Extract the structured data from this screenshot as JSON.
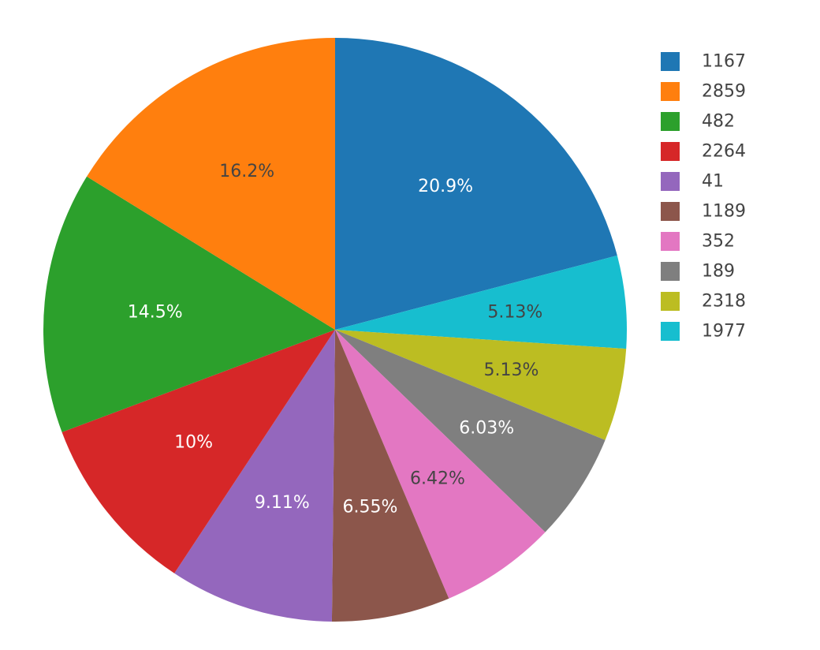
{
  "chart_data": {
    "type": "pie",
    "direction": "clockwise",
    "start": "12 o'clock",
    "slices": [
      {
        "label": "1167",
        "percent": 20.9,
        "text": "20.9%",
        "color": "#1f77b4",
        "text_color": "#ffffff"
      },
      {
        "label": "1977",
        "percent": 5.13,
        "text": "5.13%",
        "color": "#17becf",
        "text_color": "#444444"
      },
      {
        "label": "2318",
        "percent": 5.13,
        "text": "5.13%",
        "color": "#bcbd22",
        "text_color": "#444444"
      },
      {
        "label": "189",
        "percent": 6.03,
        "text": "6.03%",
        "color": "#7f7f7f",
        "text_color": "#ffffff"
      },
      {
        "label": "352",
        "percent": 6.42,
        "text": "6.42%",
        "color": "#e377c2",
        "text_color": "#444444"
      },
      {
        "label": "1189",
        "percent": 6.55,
        "text": "6.55%",
        "color": "#8c564b",
        "text_color": "#ffffff"
      },
      {
        "label": "41",
        "percent": 9.11,
        "text": "9.11%",
        "color": "#9467bd",
        "text_color": "#ffffff"
      },
      {
        "label": "2264",
        "percent": 10,
        "text": "10%",
        "color": "#d62728",
        "text_color": "#ffffff"
      },
      {
        "label": "482",
        "percent": 14.5,
        "text": "14.5%",
        "color": "#2ca02c",
        "text_color": "#ffffff"
      },
      {
        "label": "2859",
        "percent": 16.2,
        "text": "16.2%",
        "color": "#ff7f0e",
        "text_color": "#444444"
      }
    ],
    "legend": {
      "position": "top-right",
      "entries": [
        {
          "label": "1167",
          "color": "#1f77b4"
        },
        {
          "label": "2859",
          "color": "#ff7f0e"
        },
        {
          "label": "482",
          "color": "#2ca02c"
        },
        {
          "label": "2264",
          "color": "#d62728"
        },
        {
          "label": "41",
          "color": "#9467bd"
        },
        {
          "label": "1189",
          "color": "#8c564b"
        },
        {
          "label": "352",
          "color": "#e377c2"
        },
        {
          "label": "189",
          "color": "#7f7f7f"
        },
        {
          "label": "2318",
          "color": "#bcbd22"
        },
        {
          "label": "1977",
          "color": "#17becf"
        }
      ]
    }
  }
}
